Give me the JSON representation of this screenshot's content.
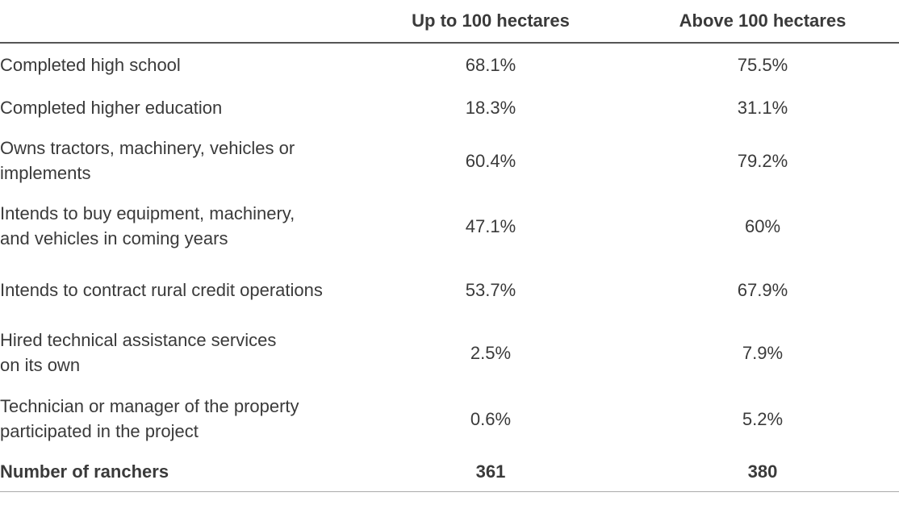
{
  "table": {
    "columns": [
      "",
      "Up to 100 hectares",
      "Above 100 hectares"
    ],
    "rows": [
      {
        "label": [
          "Completed high school"
        ],
        "values": [
          "68.1%",
          "75.5%"
        ]
      },
      {
        "label": [
          "Completed higher education"
        ],
        "values": [
          "18.3%",
          "31.1%"
        ]
      },
      {
        "label": [
          "Owns tractors, machinery, vehicles or",
          "implements"
        ],
        "values": [
          "60.4%",
          "79.2%"
        ]
      },
      {
        "label": [
          "Intends to buy equipment, machinery,",
          "and vehicles in coming years"
        ],
        "values": [
          "47.1%",
          "60%"
        ]
      },
      {
        "label": [
          "Intends to contract rural credit operations"
        ],
        "values": [
          "53.7%",
          "67.9%"
        ]
      },
      {
        "label": [
          "Hired technical assistance services",
          "on its own"
        ],
        "values": [
          "2.5%",
          "7.9%"
        ]
      },
      {
        "label": [
          "Technician or manager of the property",
          "participated in the project"
        ],
        "values": [
          "0.6%",
          "5.2%"
        ]
      }
    ],
    "total": {
      "label": "Number of ranchers",
      "values": [
        "361",
        "380"
      ]
    }
  }
}
